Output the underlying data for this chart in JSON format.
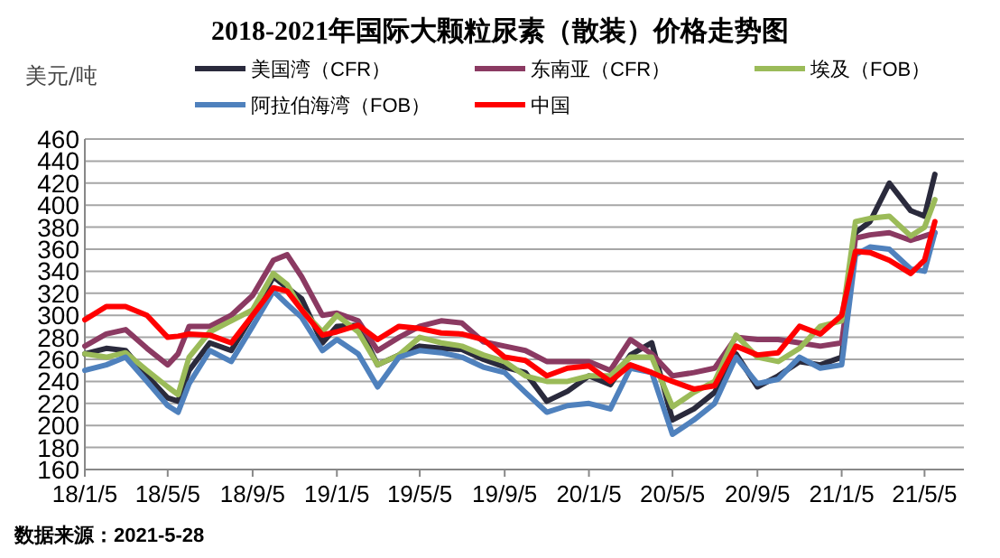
{
  "chart_data": {
    "type": "line",
    "title": "2018-2021年国际大颗粒尿素（散装）价格走势图",
    "ylabel": "美元/吨",
    "annotations": [
      "数据来源：2021-5-28"
    ],
    "x": [
      "2018-01-05",
      "2018-02-05",
      "2018-03-05",
      "2018-04-05",
      "2018-05-05",
      "2018-05-20",
      "2018-06-05",
      "2018-07-05",
      "2018-08-05",
      "2018-09-05",
      "2018-10-05",
      "2018-10-25",
      "2018-11-15",
      "2018-12-15",
      "2019-01-05",
      "2019-02-05",
      "2019-03-05",
      "2019-04-05",
      "2019-05-05",
      "2019-06-05",
      "2019-07-05",
      "2019-08-05",
      "2019-09-05",
      "2019-10-05",
      "2019-11-05",
      "2019-12-05",
      "2020-01-05",
      "2020-02-05",
      "2020-03-05",
      "2020-04-05",
      "2020-05-05",
      "2020-06-05",
      "2020-07-05",
      "2020-08-05",
      "2020-09-05",
      "2020-10-05",
      "2020-11-05",
      "2020-12-05",
      "2021-01-05",
      "2021-01-25",
      "2021-02-15",
      "2021-03-15",
      "2021-04-15",
      "2021-05-05",
      "2021-05-20"
    ],
    "series": [
      {
        "name": "美国湾（CFR）",
        "color": "#2a2a3c",
        "values": [
          265,
          270,
          268,
          245,
          225,
          222,
          250,
          275,
          268,
          300,
          335,
          325,
          315,
          275,
          290,
          291,
          255,
          264,
          272,
          270,
          269,
          260,
          253,
          248,
          222,
          231,
          245,
          237,
          264,
          275,
          205,
          215,
          230,
          265,
          235,
          245,
          258,
          255,
          262,
          375,
          385,
          420,
          395,
          390,
          428
        ]
      },
      {
        "name": "东南亚（CFR）",
        "color": "#8b3a62",
        "values": [
          272,
          283,
          287,
          270,
          255,
          265,
          290,
          290,
          300,
          318,
          350,
          355,
          335,
          300,
          302,
          295,
          268,
          280,
          290,
          295,
          293,
          276,
          272,
          268,
          258,
          258,
          258,
          250,
          278,
          265,
          245,
          248,
          252,
          280,
          278,
          278,
          275,
          272,
          275,
          370,
          373,
          375,
          368,
          372,
          375
        ]
      },
      {
        "name": "埃及（FOB）",
        "color": "#9bbb59",
        "values": [
          265,
          262,
          266,
          250,
          235,
          228,
          262,
          285,
          295,
          305,
          338,
          328,
          305,
          285,
          300,
          285,
          255,
          264,
          280,
          275,
          272,
          264,
          258,
          245,
          240,
          240,
          245,
          245,
          262,
          262,
          217,
          230,
          240,
          282,
          262,
          258,
          270,
          290,
          295,
          385,
          388,
          390,
          372,
          380,
          405
        ]
      },
      {
        "name": "阿拉伯海湾（FOB）",
        "color": "#4f81bd",
        "values": [
          250,
          255,
          262,
          240,
          218,
          212,
          238,
          268,
          258,
          290,
          322,
          310,
          298,
          268,
          278,
          265,
          235,
          262,
          268,
          266,
          262,
          253,
          248,
          230,
          212,
          218,
          220,
          215,
          252,
          248,
          192,
          205,
          220,
          262,
          238,
          242,
          262,
          252,
          255,
          355,
          362,
          360,
          342,
          340,
          375
        ]
      },
      {
        "name": "中国",
        "color": "#ff0000",
        "values": [
          296,
          308,
          308,
          300,
          280,
          281,
          283,
          282,
          275,
          300,
          325,
          322,
          305,
          282,
          285,
          291,
          278,
          290,
          288,
          284,
          283,
          278,
          262,
          259,
          245,
          252,
          254,
          240,
          255,
          248,
          240,
          233,
          236,
          272,
          264,
          266,
          290,
          283,
          300,
          358,
          357,
          350,
          338,
          350,
          385
        ]
      }
    ],
    "xlim": [
      "2018-01-05",
      "2021-07-01"
    ],
    "xticks": [
      {
        "value": "2018-01-05",
        "label": "18/1/5"
      },
      {
        "value": "2018-05-05",
        "label": "18/5/5"
      },
      {
        "value": "2018-09-05",
        "label": "18/9/5"
      },
      {
        "value": "2019-01-05",
        "label": "19/1/5"
      },
      {
        "value": "2019-05-05",
        "label": "19/5/5"
      },
      {
        "value": "2019-09-05",
        "label": "19/9/5"
      },
      {
        "value": "2020-01-05",
        "label": "20/1/5"
      },
      {
        "value": "2020-05-05",
        "label": "20/5/5"
      },
      {
        "value": "2020-09-05",
        "label": "20/9/5"
      },
      {
        "value": "2021-01-05",
        "label": "21/1/5"
      },
      {
        "value": "2021-05-05",
        "label": "21/5/5"
      }
    ],
    "ylim": [
      160,
      460
    ],
    "yticks": [
      160,
      180,
      200,
      220,
      240,
      260,
      280,
      300,
      320,
      340,
      360,
      380,
      400,
      420,
      440,
      460
    ],
    "grid": "y",
    "legend": "top"
  }
}
